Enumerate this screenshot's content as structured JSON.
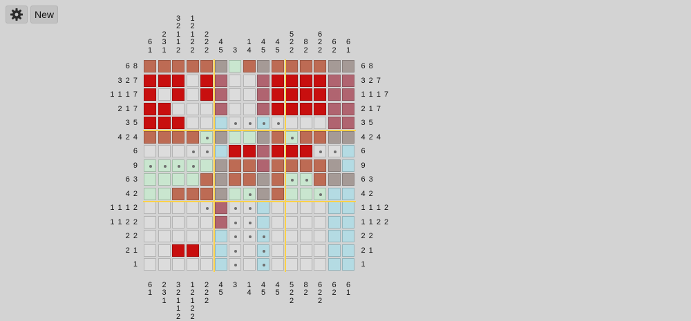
{
  "toolbar": {
    "settings_icon": "gear-icon",
    "new_label": "New"
  },
  "colors": {
    "R": "#c80f0f",
    "B": "#bd6b54",
    "M": "#b06470",
    "G": "#a59a96",
    "L": "#c9e6cf",
    "C": "#b4dbe3",
    "E": "#dcdcdc",
    "cluster_line": "#ffd24a"
  },
  "column_clues": [
    [
      "6",
      "1"
    ],
    [
      "2",
      "3",
      "1"
    ],
    [
      "3",
      "2",
      "1",
      "1",
      "2"
    ],
    [
      "1",
      "2",
      "1",
      "2",
      "2"
    ],
    [
      "2",
      "2",
      "2"
    ],
    [
      "4",
      "5"
    ],
    [
      "3"
    ],
    [
      "1",
      "4"
    ],
    [
      "4",
      "5"
    ],
    [
      "4",
      "5"
    ],
    [
      "5",
      "2",
      "2"
    ],
    [
      "8",
      "2"
    ],
    [
      "6",
      "2",
      "2"
    ],
    [
      "6",
      "2"
    ],
    [
      "6",
      "1"
    ]
  ],
  "row_clues": [
    "6 8",
    "3 2 7",
    "1 1 1 7",
    "2 1 7",
    "3 5",
    "4 2 4",
    "6",
    "9",
    "6 3",
    "4 2",
    "1 1 1 2",
    "1 1 2 2",
    "2 2",
    "2 1",
    "1"
  ],
  "grid": [
    "BBBBBGLBGBBBBGG",
    "RRRERMEEMRRRRMM",
    "RERERMEEMRRRRMM",
    "RREEEMEEMRRRRMM",
    "RRREECEECEEEEMM",
    "BBBBLGLLGBLBBGG",
    "EEEEECRRMRRREEC",
    "LLLLLGBBMBBBBGC",
    "LLLLBGBBGBLLBGG",
    "LLBBBGLLGBLLLCC",
    "EEEEEMEECEEEECC",
    "EEEEEMEECEEEECC",
    "EEEEECEECEEEECC",
    "EERRECEECEEEECC",
    "EEEEECEECEEEECC"
  ],
  "dots": [
    "...............",
    "...............",
    "...............",
    "...............",
    "......xxxx.....",
    "....x.....x....",
    "...xx.......xx.",
    "xxxx...........",
    "..........xx...",
    ".......x....x..",
    "....x.xx.......",
    "......xx.......",
    "......xxx......",
    "......x.x......",
    "......x.x......"
  ]
}
